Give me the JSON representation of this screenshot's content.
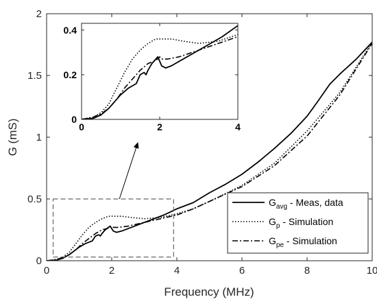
{
  "chart_data": {
    "type": "line",
    "xlabel": "Frequency (MHz)",
    "ylabel": "G (mS)",
    "xlim": [
      0,
      10
    ],
    "ylim": [
      0,
      2
    ],
    "xticks": [
      "0",
      "2",
      "4",
      "6",
      "8",
      "10"
    ],
    "yticks": [
      "0",
      "0.5",
      "1",
      "1.5",
      "2"
    ],
    "grid": false,
    "legend_position": "bottom-right",
    "series": [
      {
        "name": "G_avg - Meas, data",
        "legend_main": "G",
        "legend_sub": "avg",
        "legend_rest": " - Meas, data",
        "style": "solid",
        "x": [
          0,
          0.3,
          0.5,
          0.7,
          0.9,
          1.0,
          1.2,
          1.4,
          1.5,
          1.6,
          1.65,
          1.7,
          1.8,
          1.9,
          1.95,
          2.0,
          2.05,
          2.15,
          2.3,
          2.5,
          2.8,
          3.2,
          3.6,
          4.0,
          4.5,
          5.0,
          5.5,
          6.0,
          6.5,
          7.0,
          7.5,
          8.0,
          8.3,
          8.7,
          9.0,
          9.5,
          10.0
        ],
        "y": [
          0,
          0.005,
          0.02,
          0.05,
          0.09,
          0.11,
          0.14,
          0.16,
          0.2,
          0.21,
          0.2,
          0.22,
          0.25,
          0.27,
          0.28,
          0.26,
          0.24,
          0.23,
          0.24,
          0.26,
          0.29,
          0.33,
          0.37,
          0.42,
          0.47,
          0.55,
          0.62,
          0.7,
          0.8,
          0.91,
          1.03,
          1.17,
          1.28,
          1.43,
          1.51,
          1.63,
          1.77
        ]
      },
      {
        "name": "G_p - Simulation",
        "legend_main": "G",
        "legend_sub": "p",
        "legend_rest": " - Simulation",
        "style": "dotted",
        "x": [
          0,
          0.3,
          0.5,
          0.7,
          0.9,
          1.1,
          1.3,
          1.5,
          1.7,
          1.9,
          2.1,
          2.3,
          2.6,
          3.0,
          3.5,
          4.0,
          4.5,
          5.0,
          6.0,
          7.0,
          8.0,
          9.0,
          10.0
        ],
        "y": [
          0,
          0.01,
          0.03,
          0.07,
          0.14,
          0.21,
          0.27,
          0.31,
          0.34,
          0.36,
          0.36,
          0.36,
          0.35,
          0.34,
          0.35,
          0.38,
          0.42,
          0.48,
          0.61,
          0.79,
          1.05,
          1.36,
          1.77
        ]
      },
      {
        "name": "G_pe - Simulation",
        "legend_main": "G",
        "legend_sub": "pe",
        "legend_rest": " - Simulation",
        "style": "dashdot",
        "x": [
          0,
          0.3,
          0.5,
          0.7,
          0.9,
          1.1,
          1.3,
          1.5,
          1.7,
          1.85,
          1.95,
          2.0,
          2.05,
          2.2,
          2.5,
          3.0,
          3.5,
          4.0,
          4.5,
          5.0,
          6.0,
          7.0,
          8.0,
          9.0,
          10.0
        ],
        "y": [
          0,
          0.01,
          0.025,
          0.05,
          0.09,
          0.14,
          0.18,
          0.22,
          0.25,
          0.26,
          0.27,
          0.28,
          0.27,
          0.27,
          0.28,
          0.31,
          0.34,
          0.37,
          0.42,
          0.48,
          0.6,
          0.77,
          1.01,
          1.34,
          1.76
        ]
      }
    ],
    "inset": {
      "xlim": [
        0,
        4
      ],
      "ylim": [
        0,
        0.43
      ],
      "xticks": [
        "0",
        "2",
        "4"
      ],
      "yticks": [
        "0",
        "0.2",
        "0.4"
      ]
    },
    "zoom_box": {
      "x": [
        0.2,
        3.9
      ],
      "y": [
        0.03,
        0.5
      ]
    }
  }
}
